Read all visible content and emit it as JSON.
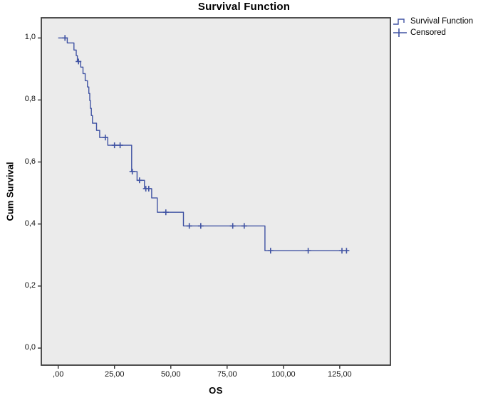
{
  "colors": {
    "curve": "#4053a3",
    "plot_background": "#ebebeb",
    "frame": "#3d3d3d",
    "tick": "#222222",
    "text": "#000000"
  },
  "chart_data": {
    "type": "line",
    "subtype": "kaplan-meier-step-function",
    "title": "Survival Function",
    "xlabel": "OS",
    "ylabel": "Cum Survival",
    "grid": false,
    "legend_position": "top-right-outside",
    "decimal_separator": ",",
    "xlim": [
      -7.5,
      147.5
    ],
    "ylim": [
      -0.055,
      1.065
    ],
    "x_ticks": {
      "values": [
        0,
        25,
        50,
        75,
        100,
        125
      ],
      "labels": [
        ",00",
        "25,00",
        "50,00",
        "75,00",
        "100,00",
        "125,00"
      ]
    },
    "y_ticks": {
      "values": [
        0,
        0.2,
        0.4,
        0.6,
        0.8,
        1.0
      ],
      "labels": [
        "0,0",
        "0,2",
        "0,4",
        "0,6",
        "0,8",
        "1,0"
      ]
    },
    "legend": [
      {
        "label": "Survival Function",
        "marker": "step-line"
      },
      {
        "label": "Censored",
        "marker": "plus"
      }
    ],
    "series": [
      {
        "name": "Survival Function",
        "start": [
          0,
          1.0
        ],
        "steps": [
          [
            4,
            0.984
          ],
          [
            7,
            0.961
          ],
          [
            8,
            0.943
          ],
          [
            8.5,
            0.924
          ],
          [
            10,
            0.906
          ],
          [
            11,
            0.885
          ],
          [
            12,
            0.862
          ],
          [
            13,
            0.842
          ],
          [
            13.6,
            0.821
          ],
          [
            14,
            0.798
          ],
          [
            14.3,
            0.773
          ],
          [
            14.7,
            0.75
          ],
          [
            15.2,
            0.725
          ],
          [
            17,
            0.702
          ],
          [
            18.4,
            0.679
          ],
          [
            22,
            0.654
          ],
          [
            32.6,
            0.569
          ],
          [
            35,
            0.541
          ],
          [
            38.3,
            0.514
          ],
          [
            41.5,
            0.484
          ],
          [
            44,
            0.438
          ],
          [
            55.6,
            0.394
          ],
          [
            91.8,
            0.314
          ]
        ],
        "end_time": 128.5
      }
    ],
    "censored_points": [
      [
        3,
        1.0
      ],
      [
        9,
        0.924
      ],
      [
        20.9,
        0.679
      ],
      [
        25,
        0.654
      ],
      [
        27.5,
        0.654
      ],
      [
        32.9,
        0.569
      ],
      [
        36.1,
        0.541
      ],
      [
        38.9,
        0.514
      ],
      [
        40.2,
        0.514
      ],
      [
        47.8,
        0.438
      ],
      [
        58.2,
        0.394
      ],
      [
        63.3,
        0.394
      ],
      [
        77.5,
        0.394
      ],
      [
        82.6,
        0.394
      ],
      [
        94.3,
        0.314
      ],
      [
        111,
        0.314
      ],
      [
        126,
        0.314
      ],
      [
        128,
        0.314
      ]
    ]
  }
}
